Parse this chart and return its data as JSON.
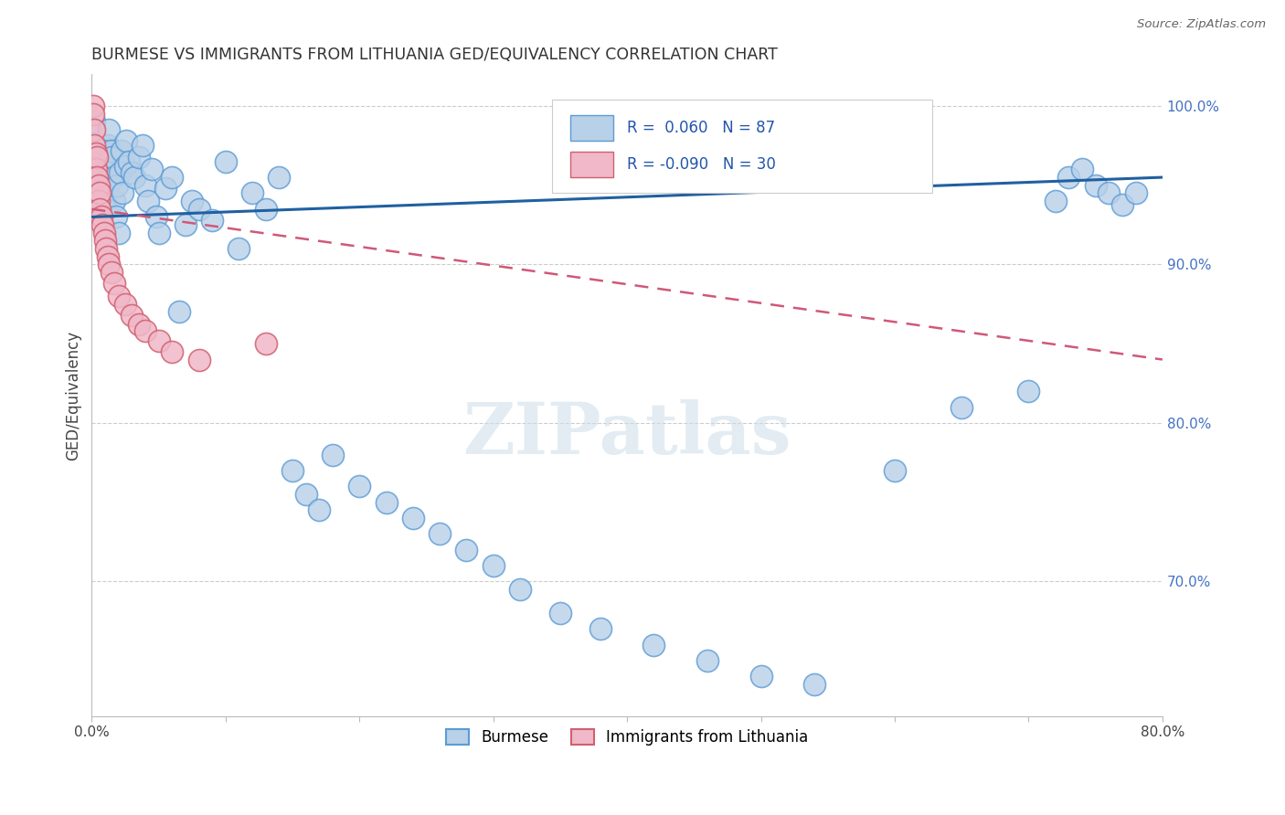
{
  "title": "BURMESE VS IMMIGRANTS FROM LITHUANIA GED/EQUIVALENCY CORRELATION CHART",
  "source": "Source: ZipAtlas.com",
  "ylabel": "GED/Equivalency",
  "x_min": 0.0,
  "x_max": 0.8,
  "y_min": 0.615,
  "y_max": 1.02,
  "x_tick_labels": [
    "0.0%",
    "",
    "",
    "",
    "",
    "",
    "",
    "",
    "80.0%"
  ],
  "y_tick_labels_right": [
    "100.0%",
    "90.0%",
    "80.0%",
    "70.0%"
  ],
  "y_ticks_right": [
    1.0,
    0.9,
    0.8,
    0.7
  ],
  "burmese_color": "#b8d0e8",
  "burmese_edge_color": "#5b9bd5",
  "lithuania_color": "#f0b8c8",
  "lithuania_edge_color": "#d06070",
  "burmese_R": 0.06,
  "burmese_N": 87,
  "lithuania_R": -0.09,
  "lithuania_N": 30,
  "trend_blue_color": "#2060a0",
  "trend_pink_color": "#d05878",
  "legend_label_blue": "Burmese",
  "legend_label_pink": "Immigrants from Lithuania",
  "watermark": "ZIPatlas",
  "burmese_x": [
    0.001,
    0.002,
    0.002,
    0.003,
    0.003,
    0.004,
    0.004,
    0.005,
    0.005,
    0.006,
    0.006,
    0.007,
    0.007,
    0.007,
    0.008,
    0.008,
    0.009,
    0.009,
    0.01,
    0.01,
    0.011,
    0.011,
    0.012,
    0.012,
    0.013,
    0.013,
    0.014,
    0.015,
    0.016,
    0.017,
    0.018,
    0.019,
    0.02,
    0.021,
    0.022,
    0.023,
    0.025,
    0.026,
    0.028,
    0.03,
    0.032,
    0.035,
    0.038,
    0.04,
    0.042,
    0.045,
    0.048,
    0.05,
    0.055,
    0.06,
    0.065,
    0.07,
    0.075,
    0.08,
    0.09,
    0.1,
    0.11,
    0.12,
    0.13,
    0.14,
    0.15,
    0.16,
    0.17,
    0.18,
    0.2,
    0.22,
    0.24,
    0.26,
    0.28,
    0.3,
    0.32,
    0.35,
    0.38,
    0.42,
    0.46,
    0.5,
    0.54,
    0.6,
    0.65,
    0.7,
    0.72,
    0.73,
    0.74,
    0.75,
    0.76,
    0.77,
    0.78
  ],
  "burmese_y": [
    0.94,
    0.99,
    0.97,
    0.975,
    0.965,
    0.96,
    0.95,
    0.945,
    0.958,
    0.952,
    0.938,
    0.968,
    0.955,
    0.975,
    0.962,
    0.948,
    0.942,
    0.958,
    0.97,
    0.945,
    0.935,
    0.965,
    0.95,
    0.975,
    0.985,
    0.96,
    0.972,
    0.968,
    0.955,
    0.94,
    0.93,
    0.95,
    0.92,
    0.958,
    0.972,
    0.945,
    0.962,
    0.978,
    0.965,
    0.958,
    0.955,
    0.968,
    0.975,
    0.95,
    0.94,
    0.96,
    0.93,
    0.92,
    0.948,
    0.955,
    0.87,
    0.925,
    0.94,
    0.935,
    0.928,
    0.965,
    0.91,
    0.945,
    0.935,
    0.955,
    0.77,
    0.755,
    0.745,
    0.78,
    0.76,
    0.75,
    0.74,
    0.73,
    0.72,
    0.71,
    0.695,
    0.68,
    0.67,
    0.66,
    0.65,
    0.64,
    0.635,
    0.77,
    0.81,
    0.82,
    0.94,
    0.955,
    0.96,
    0.95,
    0.945,
    0.938,
    0.945
  ],
  "lithuania_x": [
    0.001,
    0.001,
    0.002,
    0.002,
    0.003,
    0.003,
    0.004,
    0.004,
    0.005,
    0.005,
    0.006,
    0.006,
    0.007,
    0.008,
    0.009,
    0.01,
    0.011,
    0.012,
    0.013,
    0.015,
    0.017,
    0.02,
    0.025,
    0.03,
    0.035,
    0.04,
    0.05,
    0.06,
    0.08,
    0.13
  ],
  "lithuania_y": [
    1.0,
    0.995,
    0.985,
    0.975,
    0.97,
    0.96,
    0.968,
    0.955,
    0.95,
    0.94,
    0.945,
    0.935,
    0.93,
    0.925,
    0.92,
    0.915,
    0.91,
    0.905,
    0.9,
    0.895,
    0.888,
    0.88,
    0.875,
    0.868,
    0.862,
    0.858,
    0.852,
    0.845,
    0.84,
    0.85
  ],
  "blue_trend_x": [
    0.0,
    0.8
  ],
  "blue_trend_y": [
    0.93,
    0.955
  ],
  "pink_trend_x": [
    0.0,
    0.8
  ],
  "pink_trend_y": [
    0.935,
    0.84
  ]
}
